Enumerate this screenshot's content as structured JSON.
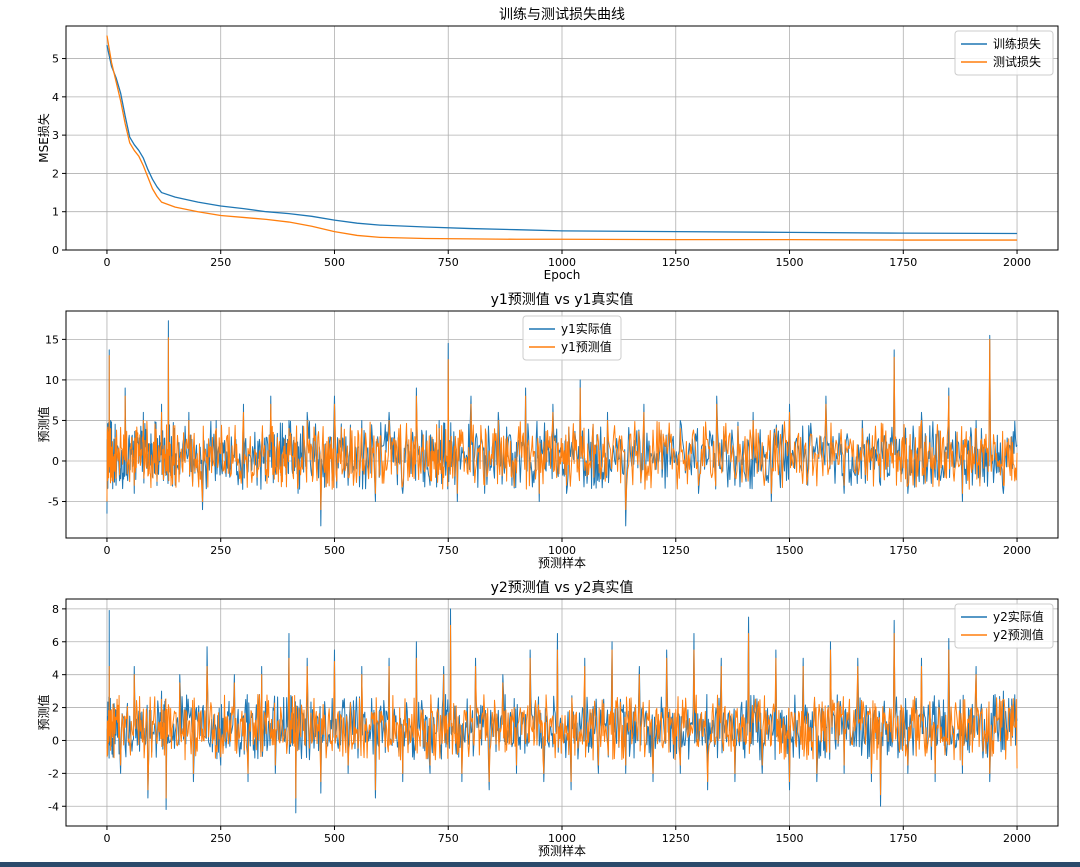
{
  "colors": {
    "series1": "#1f77b4",
    "series2": "#ff7f0e",
    "grid": "#b0b0b0",
    "frame": "#000000",
    "bottom_bar": "#2b4a6b"
  },
  "chart_data": [
    {
      "type": "line",
      "title": "训练与测试损失曲线",
      "xlabel": "Epoch",
      "ylabel": "MSE损失",
      "xlim": [
        -90,
        2090
      ],
      "ylim": [
        0,
        5.85
      ],
      "xticks": [
        0,
        250,
        500,
        750,
        1000,
        1250,
        1500,
        1750,
        2000
      ],
      "yticks": [
        0,
        1,
        2,
        3,
        4,
        5
      ],
      "grid": true,
      "legend": "top-right",
      "series": [
        {
          "name": "训练损失",
          "color": "#1f77b4",
          "x": [
            0,
            10,
            20,
            30,
            40,
            50,
            60,
            70,
            80,
            90,
            100,
            110,
            120,
            150,
            200,
            250,
            300,
            350,
            400,
            450,
            500,
            550,
            600,
            700,
            800,
            900,
            1000,
            1250,
            1500,
            1750,
            2000
          ],
          "y": [
            5.35,
            4.8,
            4.5,
            4.1,
            3.5,
            2.95,
            2.75,
            2.6,
            2.4,
            2.1,
            1.85,
            1.65,
            1.5,
            1.38,
            1.25,
            1.15,
            1.08,
            1.0,
            0.95,
            0.88,
            0.78,
            0.7,
            0.65,
            0.6,
            0.56,
            0.53,
            0.5,
            0.48,
            0.46,
            0.44,
            0.43
          ]
        },
        {
          "name": "测试损失",
          "color": "#ff7f0e",
          "x": [
            0,
            10,
            20,
            30,
            40,
            50,
            60,
            70,
            80,
            90,
            100,
            110,
            120,
            150,
            200,
            250,
            300,
            350,
            400,
            450,
            500,
            550,
            600,
            700,
            800,
            900,
            1000,
            1250,
            1500,
            1750,
            2000
          ],
          "y": [
            5.6,
            4.9,
            4.4,
            3.9,
            3.3,
            2.8,
            2.6,
            2.45,
            2.2,
            1.9,
            1.6,
            1.4,
            1.25,
            1.12,
            1.0,
            0.9,
            0.85,
            0.8,
            0.73,
            0.62,
            0.48,
            0.38,
            0.33,
            0.3,
            0.29,
            0.28,
            0.28,
            0.27,
            0.27,
            0.26,
            0.26
          ]
        }
      ]
    },
    {
      "type": "line",
      "title": "y1预测值 vs y1真实值",
      "xlabel": "预测样本",
      "ylabel": "预测值",
      "xlim": [
        -90,
        2090
      ],
      "ylim": [
        -9.5,
        18.5
      ],
      "xticks": [
        0,
        250,
        500,
        750,
        1000,
        1250,
        1500,
        1750,
        2000
      ],
      "yticks": [
        -5,
        0,
        5,
        10,
        15
      ],
      "grid": true,
      "legend": "top-center",
      "series": [
        {
          "name": "y1实际值",
          "color": "#1f77b4",
          "x": [
            0,
            5,
            8,
            20,
            40,
            60,
            80,
            100,
            120,
            135,
            150,
            180,
            210,
            240,
            270,
            300,
            330,
            360,
            380,
            400,
            420,
            440,
            470,
            500,
            530,
            560,
            590,
            620,
            650,
            680,
            710,
            730,
            750,
            770,
            800,
            830,
            860,
            890,
            920,
            950,
            980,
            1010,
            1040,
            1070,
            1100,
            1140,
            1180,
            1220,
            1260,
            1300,
            1340,
            1380,
            1420,
            1460,
            1500,
            1540,
            1580,
            1620,
            1660,
            1700,
            1730,
            1760,
            1790,
            1820,
            1850,
            1880,
            1910,
            1940,
            1970,
            2000
          ],
          "y": [
            -6.5,
            13.7,
            5,
            -3,
            9,
            -4,
            6,
            -2,
            7,
            17.3,
            -3,
            6,
            -6,
            5,
            -2,
            7,
            -3,
            8,
            -1,
            5,
            -4,
            6,
            -8,
            8,
            -3,
            5,
            -5,
            6,
            -4,
            9,
            -3,
            5,
            14.5,
            -5,
            8,
            -4,
            6,
            -3,
            9,
            -5,
            7,
            -4,
            10,
            -3,
            6,
            -8,
            7,
            -2,
            5,
            -4,
            8,
            -3,
            6,
            -5,
            7,
            -3,
            8,
            -4,
            5,
            -3,
            13.7,
            -4,
            6,
            -2,
            9,
            -5,
            5,
            15.5,
            -4,
            2
          ]
        },
        {
          "name": "y1预测值",
          "color": "#ff7f0e",
          "x": [
            0,
            5,
            8,
            20,
            40,
            60,
            80,
            100,
            120,
            135,
            150,
            180,
            210,
            240,
            270,
            300,
            330,
            360,
            380,
            400,
            420,
            440,
            470,
            500,
            530,
            560,
            590,
            620,
            650,
            680,
            710,
            730,
            750,
            770,
            800,
            830,
            860,
            890,
            920,
            950,
            980,
            1010,
            1040,
            1070,
            1100,
            1140,
            1180,
            1220,
            1260,
            1300,
            1340,
            1380,
            1420,
            1460,
            1500,
            1540,
            1580,
            1620,
            1660,
            1700,
            1730,
            1760,
            1790,
            1820,
            1850,
            1880,
            1910,
            1940,
            1970,
            2000
          ],
          "y": [
            -5,
            13,
            4,
            -2,
            8,
            -3,
            5,
            -1,
            6,
            15.2,
            -2,
            5,
            -5,
            4,
            -1,
            6,
            -2,
            7,
            0,
            4,
            -3,
            5,
            -6,
            7,
            -2,
            4,
            -4,
            5,
            -3,
            8,
            -2,
            4,
            12.5,
            -4,
            7,
            -3,
            5,
            -2,
            8,
            -4,
            6,
            -3,
            9,
            -2,
            5,
            -6,
            6,
            -1,
            4,
            -3,
            7,
            -2,
            5,
            -4,
            6,
            -2,
            7,
            -3,
            4,
            -2,
            12.8,
            -3,
            5,
            -1,
            8,
            -4,
            4,
            15,
            -3,
            1
          ]
        }
      ]
    },
    {
      "type": "line",
      "title": "y2预测值 vs y2真实值",
      "xlabel": "预测样本",
      "ylabel": "预测值",
      "xlim": [
        -90,
        2090
      ],
      "ylim": [
        -5.2,
        8.6
      ],
      "xticks": [
        0,
        250,
        500,
        750,
        1000,
        1250,
        1500,
        1750,
        2000
      ],
      "yticks": [
        -4,
        -2,
        0,
        2,
        4,
        6,
        8
      ],
      "grid": true,
      "legend": "top-right",
      "series": [
        {
          "name": "y2实际值",
          "color": "#1f77b4",
          "x": [
            0,
            5,
            10,
            30,
            60,
            90,
            120,
            130,
            160,
            190,
            220,
            250,
            280,
            310,
            340,
            370,
            400,
            415,
            440,
            470,
            500,
            530,
            560,
            590,
            620,
            650,
            680,
            710,
            740,
            755,
            780,
            810,
            840,
            870,
            900,
            930,
            960,
            990,
            1020,
            1050,
            1080,
            1110,
            1140,
            1170,
            1200,
            1230,
            1260,
            1290,
            1320,
            1350,
            1380,
            1410,
            1440,
            1470,
            1500,
            1530,
            1560,
            1590,
            1620,
            1650,
            1680,
            1700,
            1730,
            1760,
            1790,
            1820,
            1850,
            1880,
            1910,
            1940,
            1970,
            2000
          ],
          "y": [
            -0.5,
            7.9,
            1,
            -2,
            4.5,
            -3.5,
            3,
            -4.2,
            4,
            -2.5,
            5.7,
            -1.5,
            4,
            -2.5,
            4.5,
            -2,
            6.5,
            -4.4,
            5,
            -3.2,
            5.5,
            -2,
            4.5,
            -3.5,
            5,
            -2.5,
            6,
            -2,
            4.5,
            8,
            -2.5,
            5,
            -3,
            4,
            -2,
            5.5,
            -2.5,
            6.5,
            -3,
            5,
            -2,
            6,
            -2,
            4.5,
            -2.5,
            5.5,
            -2,
            6.5,
            -3,
            5,
            -2.5,
            7.5,
            -2,
            5.5,
            -3,
            5,
            -2.5,
            6,
            -2,
            5,
            -2.5,
            -4,
            7.3,
            -2,
            5,
            -2.5,
            6.2,
            -2,
            4.5,
            -2.5,
            3,
            1.2
          ]
        },
        {
          "name": "y2预测值",
          "color": "#ff7f0e",
          "x": [
            0,
            5,
            10,
            30,
            60,
            90,
            120,
            130,
            160,
            190,
            220,
            250,
            280,
            310,
            340,
            370,
            400,
            415,
            440,
            470,
            500,
            530,
            560,
            590,
            620,
            650,
            680,
            710,
            740,
            755,
            780,
            810,
            840,
            870,
            900,
            930,
            960,
            990,
            1020,
            1050,
            1080,
            1110,
            1140,
            1170,
            1200,
            1230,
            1260,
            1290,
            1320,
            1350,
            1380,
            1410,
            1440,
            1470,
            1500,
            1530,
            1560,
            1590,
            1620,
            1650,
            1680,
            1700,
            1730,
            1760,
            1790,
            1820,
            1850,
            1880,
            1910,
            1940,
            1970,
            2000
          ],
          "y": [
            -0.2,
            4.5,
            0.8,
            -1.5,
            4,
            -3,
            2.5,
            -3.5,
            3.5,
            -2,
            4.5,
            -1,
            3.5,
            -2,
            4,
            -1.5,
            5,
            -3.5,
            4.5,
            -2.5,
            4.8,
            -1.5,
            4,
            -3,
            4.5,
            -2,
            5,
            -1.5,
            4,
            7,
            -2,
            4.5,
            -2.5,
            3.5,
            -1.5,
            5,
            -2,
            5.5,
            -2.5,
            4.5,
            -1.5,
            5.5,
            -1.5,
            4,
            -2,
            5,
            -1.5,
            5.5,
            -2.5,
            4.5,
            -2,
            6.5,
            -1.5,
            5,
            -2.5,
            4.5,
            -2,
            5.5,
            -1.5,
            4.5,
            -2,
            -3.3,
            6.5,
            -1.5,
            4.5,
            -2,
            5.5,
            -1.5,
            4,
            -2,
            2.5,
            -1.7
          ]
        }
      ]
    }
  ]
}
